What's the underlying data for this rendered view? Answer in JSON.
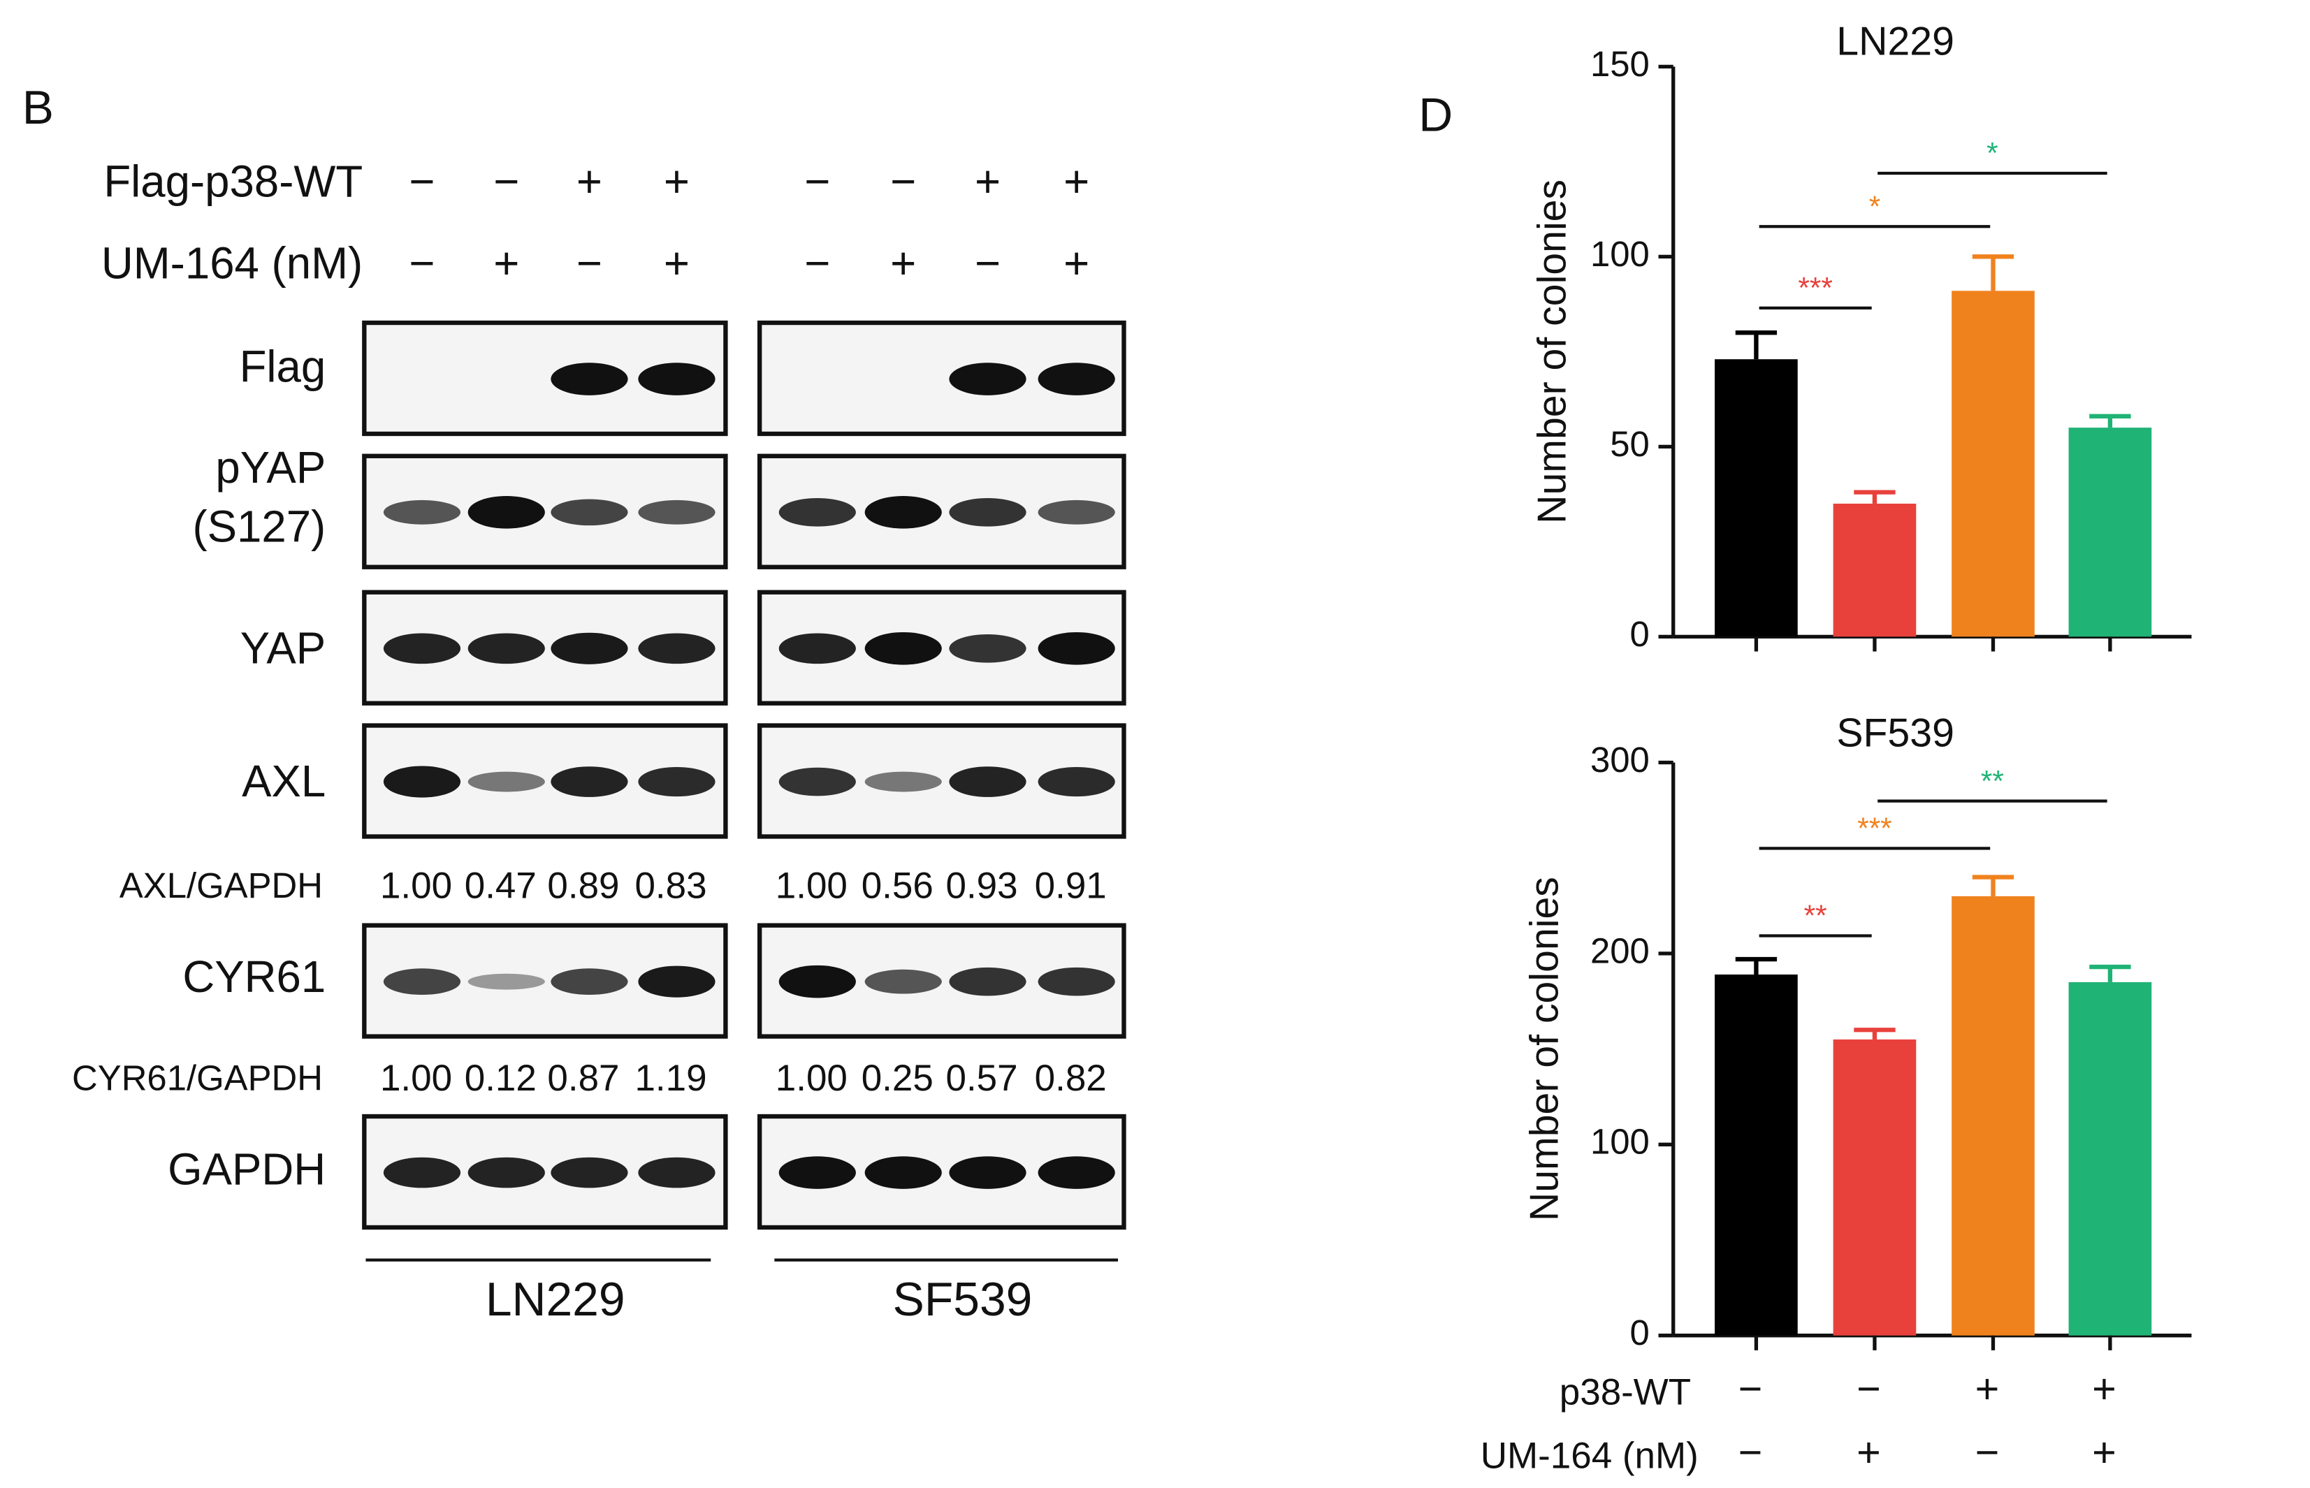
{
  "panel_b": {
    "label": "B",
    "treatments": [
      {
        "label": "Flag-p38-WT",
        "signs": [
          "−",
          "−",
          "+",
          "+",
          "−",
          "−",
          "+",
          "+"
        ]
      },
      {
        "label": "UM-164 (nM)",
        "signs": [
          "−",
          "+",
          "−",
          "+",
          "−",
          "+",
          "−",
          "+"
        ]
      }
    ],
    "blots": [
      "Flag",
      "pYAP",
      "(S127)",
      "YAP",
      "AXL",
      "CYR61",
      "GAPDH"
    ],
    "quantifications": [
      {
        "label": "AXL/GAPDH",
        "values": [
          "1.00",
          "0.47",
          "0.89",
          "0.83",
          "1.00",
          "0.56",
          "0.93",
          "0.91"
        ]
      },
      {
        "label": "CYR61/GAPDH",
        "values": [
          "1.00",
          "0.12",
          "0.87",
          "1.19",
          "1.00",
          "0.25",
          "0.57",
          "0.82"
        ]
      }
    ],
    "cell_lines": [
      "LN229",
      "SF539"
    ]
  },
  "panel_d": {
    "label": "D",
    "conditions": [
      {
        "label": "p38-WT",
        "signs": [
          "−",
          "−",
          "+",
          "+"
        ]
      },
      {
        "label": "UM-164 (nM)",
        "signs": [
          "−",
          "+",
          "−",
          "+"
        ]
      }
    ]
  },
  "chart_data": [
    {
      "type": "bar",
      "title": "LN229",
      "ylabel": "Number of colonies",
      "ylim": [
        0,
        150
      ],
      "yticks": [
        0,
        50,
        100,
        150
      ],
      "colors": [
        "#000000",
        "#e8413c",
        "#f0821e",
        "#1fb375"
      ],
      "values": [
        73,
        35,
        91,
        55
      ],
      "errors": [
        7,
        3,
        9,
        3
      ],
      "annotations": [
        {
          "from": 0,
          "to": 1,
          "label": "***",
          "color": "#e8413c"
        },
        {
          "from": 0,
          "to": 2,
          "label": "*",
          "color": "#f0821e"
        },
        {
          "from": 1,
          "to": 3,
          "label": "*",
          "color": "#1fb375"
        }
      ]
    },
    {
      "type": "bar",
      "title": "SF539",
      "ylabel": "Number of colonies",
      "ylim": [
        0,
        300
      ],
      "yticks": [
        0,
        100,
        200,
        300
      ],
      "colors": [
        "#000000",
        "#e8413c",
        "#f0821e",
        "#1fb375"
      ],
      "values": [
        189,
        155,
        230,
        185
      ],
      "errors": [
        8,
        5,
        10,
        8
      ],
      "annotations": [
        {
          "from": 0,
          "to": 1,
          "label": "**",
          "color": "#e8413c"
        },
        {
          "from": 0,
          "to": 2,
          "label": "***",
          "color": "#f0821e"
        },
        {
          "from": 1,
          "to": 3,
          "label": "**",
          "color": "#1fb375"
        }
      ]
    }
  ]
}
